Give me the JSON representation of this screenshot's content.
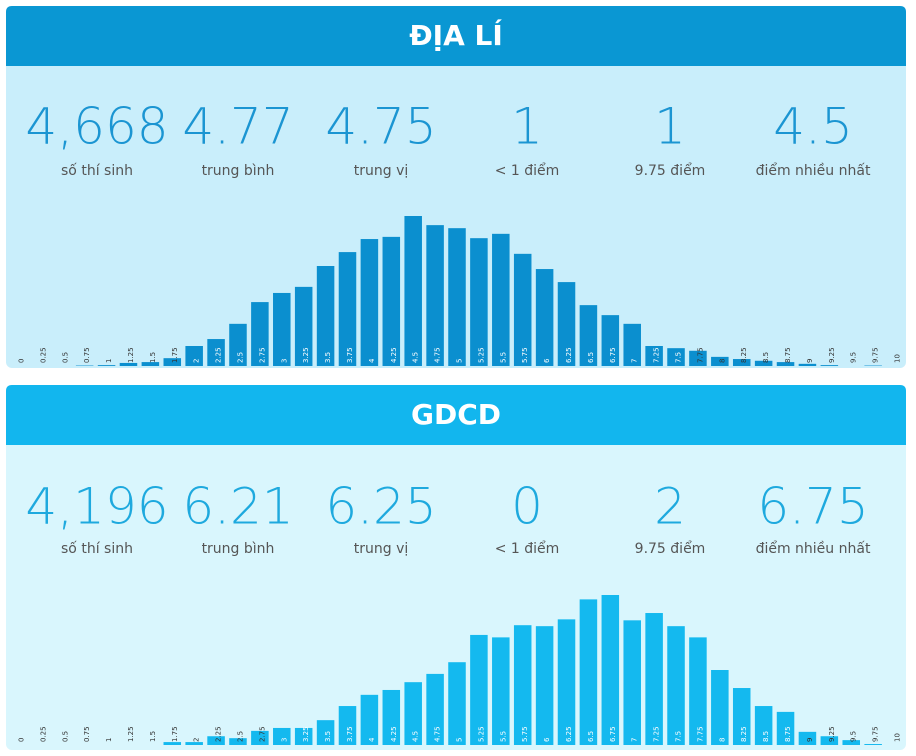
{
  "chart_data": [
    {
      "type": "bar",
      "title": "ĐỊA LÍ",
      "color": "#0b8fcf",
      "stats": [
        {
          "value": "4,668",
          "label": "số thí sinh"
        },
        {
          "value": "4.77",
          "label": "trung bình"
        },
        {
          "value": "4.75",
          "label": "trung vị"
        },
        {
          "value": "1",
          "label": "< 1 điểm"
        },
        {
          "value": "1",
          "label": "9.75 điểm"
        },
        {
          "value": "4.5",
          "label": "điểm nhiều nhất"
        }
      ],
      "categories": [
        "0",
        "0.25",
        "0.5",
        "0.75",
        "1",
        "1.25",
        "1.5",
        "1.75",
        "2",
        "2.25",
        "2.5",
        "2.75",
        "3",
        "3.25",
        "3.5",
        "3.75",
        "4",
        "4.25",
        "4.5",
        "4.75",
        "5",
        "5.25",
        "5.5",
        "5.75",
        "6",
        "6.25",
        "6.5",
        "6.75",
        "7",
        "7.25",
        "7.5",
        "7.75",
        "8",
        "8.25",
        "8.5",
        "8.75",
        "9",
        "9.25",
        "9.5",
        "9.75",
        "10"
      ],
      "values": [
        0,
        0,
        0,
        1,
        2,
        7,
        9,
        18,
        46,
        62,
        97,
        147,
        168,
        182,
        230,
        262,
        292,
        297,
        345,
        324,
        317,
        294,
        304,
        258,
        223,
        193,
        140,
        117,
        97,
        46,
        41,
        35,
        21,
        16,
        12,
        9,
        5,
        2,
        0,
        1,
        0
      ]
    },
    {
      "type": "bar",
      "title": "GDCD",
      "color": "#14b9ef",
      "stats": [
        {
          "value": "4,196",
          "label": "số thí sinh"
        },
        {
          "value": "6.21",
          "label": "trung bình"
        },
        {
          "value": "6.25",
          "label": "trung vị"
        },
        {
          "value": "0",
          "label": "< 1 điểm"
        },
        {
          "value": "2",
          "label": "9.75 điểm"
        },
        {
          "value": "6.75",
          "label": "điểm nhiều nhất"
        }
      ],
      "categories": [
        "0",
        "0.25",
        "0.5",
        "0.75",
        "1",
        "1.25",
        "1.5",
        "1.75",
        "2",
        "2.25",
        "2.5",
        "2.75",
        "3",
        "3.25",
        "3.5",
        "3.75",
        "4",
        "4.25",
        "4.5",
        "4.75",
        "5",
        "5.25",
        "5.5",
        "5.75",
        "6",
        "6.25",
        "6.5",
        "6.75",
        "7",
        "7.25",
        "7.5",
        "7.75",
        "8",
        "8.25",
        "8.5",
        "8.75",
        "9",
        "9.25",
        "9.5",
        "9.75",
        "10"
      ],
      "values": [
        0,
        0,
        0,
        0,
        0,
        0,
        0,
        6,
        6,
        18,
        14,
        29,
        35,
        35,
        51,
        80,
        103,
        113,
        129,
        146,
        170,
        226,
        221,
        246,
        244,
        258,
        299,
        308,
        256,
        271,
        244,
        221,
        154,
        117,
        80,
        68,
        27,
        18,
        10,
        2,
        0
      ]
    }
  ]
}
